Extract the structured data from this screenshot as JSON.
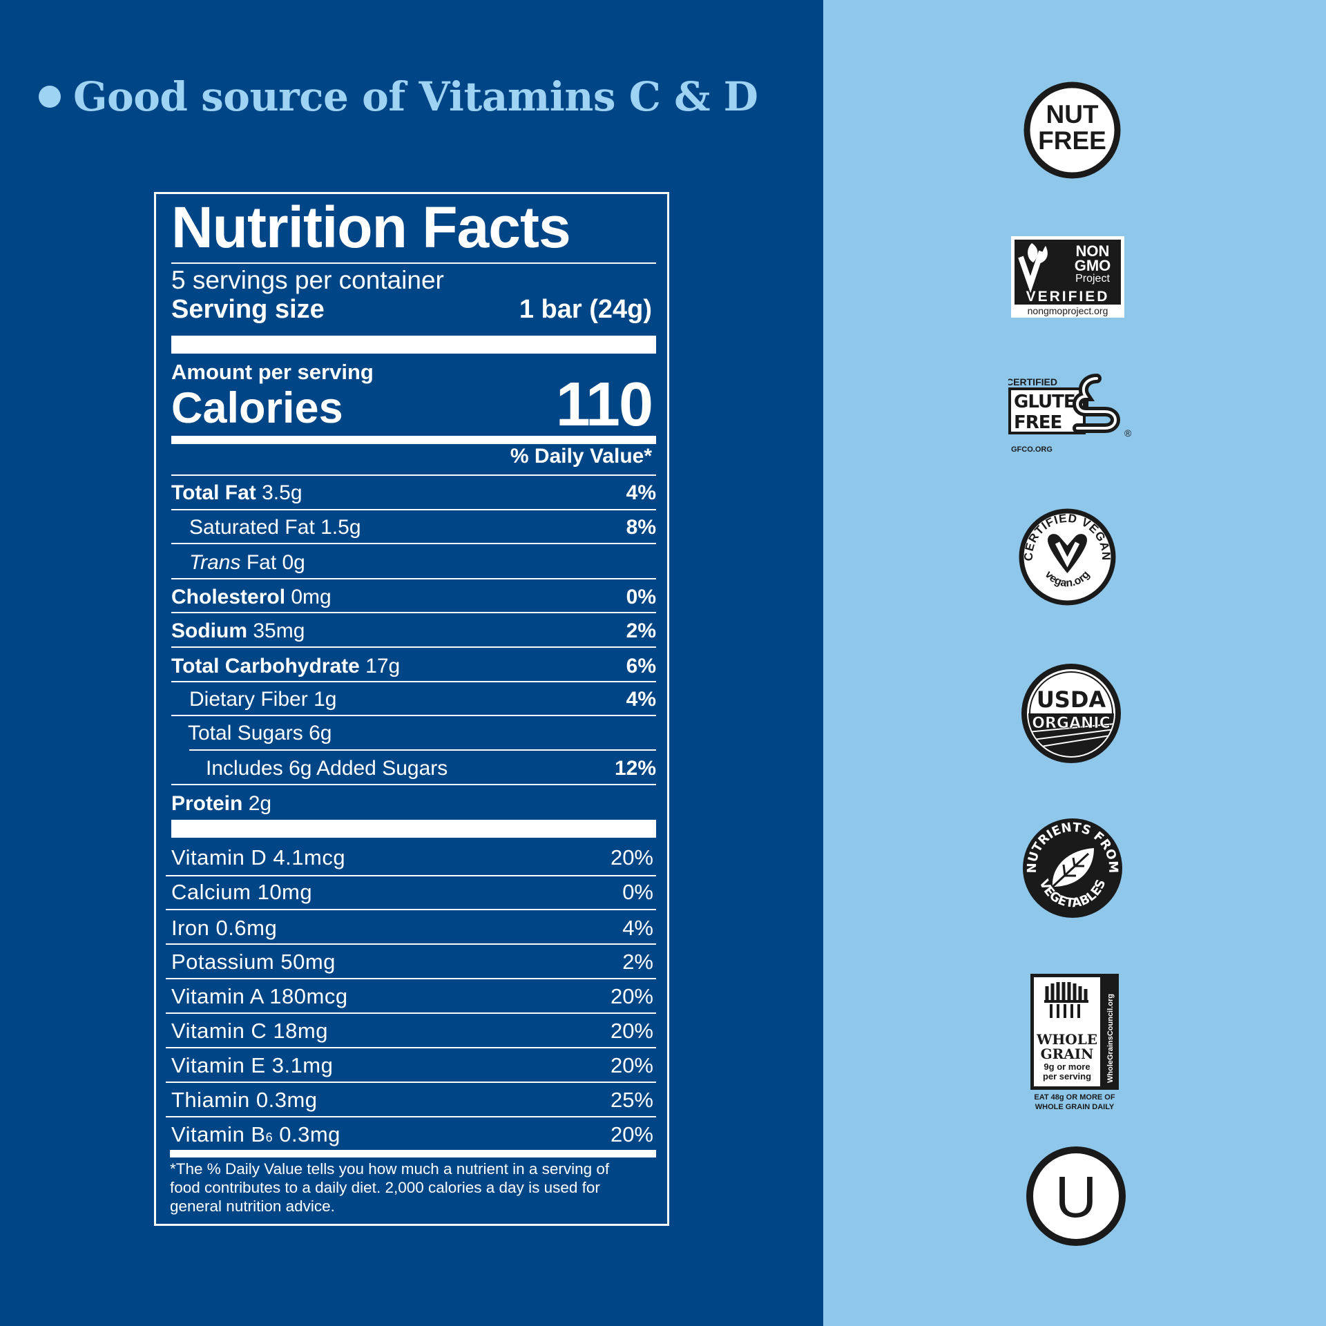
{
  "headline": "Good source of Vitamins C & D",
  "nutrition": {
    "title": "Nutrition Facts",
    "servings_per_container": "5 servings per container",
    "serving_size_label": "Serving size",
    "serving_size_value": "1 bar (24g)",
    "amount_per_serving": "Amount per serving",
    "calories_label": "Calories",
    "calories_value": "110",
    "dv_header": "% Daily Value*",
    "rows": [
      {
        "name": "Total Fat",
        "amount": "3.5g",
        "dv": "4%"
      },
      {
        "name": "Saturated Fat",
        "amount": "1.5g",
        "dv": "8%"
      },
      {
        "name": "Trans",
        "amount": "Fat 0g",
        "dv": ""
      },
      {
        "name": "Cholesterol",
        "amount": "0mg",
        "dv": "0%"
      },
      {
        "name": "Sodium",
        "amount": "35mg",
        "dv": "2%"
      },
      {
        "name": "Total Carbohydrate",
        "amount": "17g",
        "dv": "6%"
      },
      {
        "name": "Dietary Fiber",
        "amount": "1g",
        "dv": "4%"
      },
      {
        "name": "Total Sugars",
        "amount": "6g",
        "dv": ""
      },
      {
        "name": "Includes 6g Added Sugars",
        "amount": "",
        "dv": "12%"
      },
      {
        "name": "Protein",
        "amount": "2g",
        "dv": ""
      }
    ],
    "vitamins": [
      {
        "label": "Vitamin D 4.1mcg",
        "dv": "20%"
      },
      {
        "label": "Calcium 10mg",
        "dv": "0%"
      },
      {
        "label": "Iron 0.6mg",
        "dv": "4%"
      },
      {
        "label": "Potassium 50mg",
        "dv": "2%"
      },
      {
        "label": "Vitamin A 180mcg",
        "dv": "20%"
      },
      {
        "label": "Vitamin C 18mg",
        "dv": "20%"
      },
      {
        "label": "Vitamin E 3.1mg",
        "dv": "20%"
      },
      {
        "label": "Thiamin 0.3mg",
        "dv": "25%"
      },
      {
        "label": "Vitamin B",
        "sub": "6",
        "amount": "0.3mg",
        "dv": "20%"
      }
    ],
    "footnote": "*The % Daily Value tells you how much a nutrient in a serving of food contributes to a daily diet. 2,000 calories a day is used for general nutrition advice."
  },
  "badges": {
    "nut_free": {
      "line1": "NUT",
      "line2": "FREE"
    },
    "non_gmo": {
      "l1": "NON",
      "l2": "GMO",
      "l3": "Project",
      "l4": "VERIFIED",
      "l5": "nongmoproject.org"
    },
    "gluten_free": {
      "l1": "CERTIFIED",
      "l2": "GLUTEN",
      "l3": "FREE",
      "l4": "GFCO.ORG",
      "reg": "®"
    },
    "vegan": {
      "top": "CERTIFIED VEGAN",
      "bottom": "vegan.org"
    },
    "usda": {
      "l1": "USDA",
      "l2": "ORGANIC"
    },
    "vegetables": {
      "top": "NUTRIENTS FROM",
      "bottom": "VEGETABLES"
    },
    "whole_grain": {
      "l1": "WHOLE",
      "l2": "GRAIN",
      "l3": "9g or more",
      "l4": "per serving",
      "side": "WholeGrainsCouncil.org",
      "f1": "EAT 48g OR MORE OF",
      "f2": "WHOLE GRAIN DAILY"
    },
    "kosher": {
      "letter": "U"
    }
  },
  "colors": {
    "left_bg": "#004686",
    "right_bg": "#8fc7eb",
    "headline": "#9fd3f3"
  }
}
